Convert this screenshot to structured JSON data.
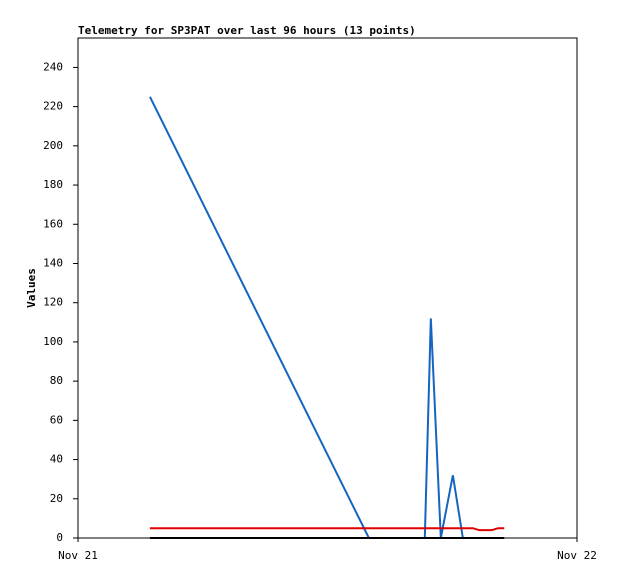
{
  "chart_data": {
    "type": "line",
    "title": "Telemetry for SP3PAT over last 96 hours (13 points)",
    "y_label": "Values",
    "xlim": [
      0,
      24
    ],
    "xticks": [
      {
        "value": 0,
        "label": "Nov 21"
      },
      {
        "value": 24,
        "label": "Nov 22"
      }
    ],
    "ylim": [
      0,
      255
    ],
    "yticks": [
      0,
      20,
      40,
      60,
      80,
      100,
      120,
      140,
      160,
      180,
      200,
      220,
      240
    ],
    "series": [
      {
        "color": "#1565c0",
        "x": [
          3.46,
          13.99,
          16.68,
          16.97,
          17.45,
          18.03,
          18.51
        ],
        "values": [
          225,
          0,
          0,
          112,
          0,
          32,
          0
        ]
      },
      {
        "color": "#e00000",
        "x": [
          3.46,
          18.99,
          19.3,
          19.9,
          20.2,
          20.5
        ],
        "values": [
          5,
          5,
          4,
          4,
          5,
          5
        ]
      },
      {
        "color": "#000000",
        "x": [
          3.46,
          20.5
        ],
        "values": [
          0,
          0
        ]
      }
    ]
  }
}
